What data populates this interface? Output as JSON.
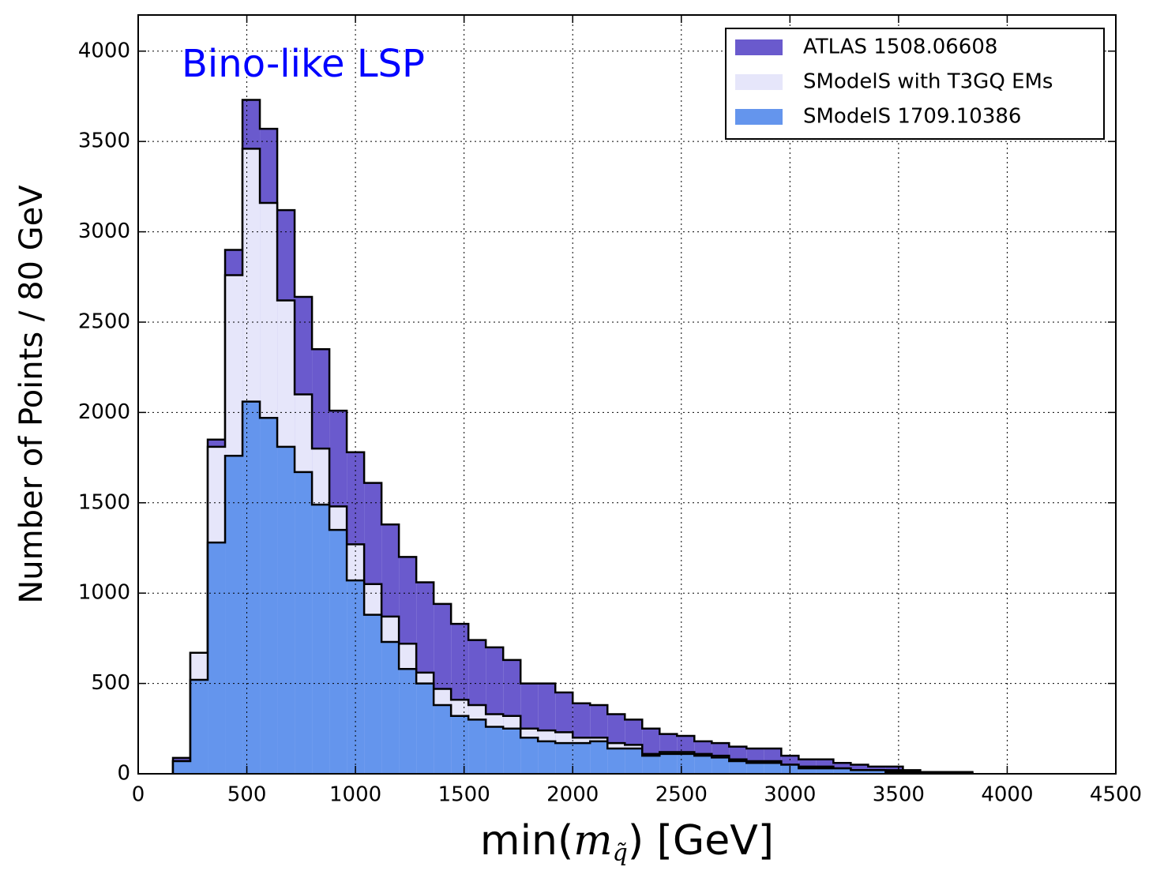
{
  "chart_data": {
    "type": "histogram",
    "annotation": "Bino-like LSP",
    "xlabel": {
      "pre": "min(",
      "var": "m",
      "sub": "q̃",
      "post": ") [GeV]"
    },
    "ylabel": "Number of Points / 80 GeV",
    "bins": [
      160,
      240,
      320,
      400,
      480,
      560,
      640,
      720,
      800,
      880,
      960,
      1040,
      1120,
      1200,
      1280,
      1360,
      1440,
      1520,
      1600,
      1680,
      1760,
      1840,
      1920,
      2000,
      2080,
      2160,
      2240,
      2320,
      2400,
      2480,
      2560,
      2640,
      2720,
      2800,
      2880,
      2960,
      3040,
      3120,
      3200,
      3280,
      3360,
      3440,
      3520,
      3600,
      3680,
      3760,
      3840
    ],
    "series": [
      {
        "name": "ATLAS 1508.06608",
        "color": "#6a5acd",
        "values": [
          88,
          670,
          1850,
          2900,
          3730,
          3570,
          3120,
          2640,
          2350,
          2010,
          1780,
          1610,
          1380,
          1200,
          1060,
          940,
          830,
          740,
          700,
          630,
          500,
          500,
          450,
          390,
          380,
          330,
          300,
          250,
          220,
          210,
          180,
          170,
          150,
          140,
          140,
          100,
          80,
          80,
          60,
          50,
          40,
          40,
          20,
          10,
          10,
          10
        ]
      },
      {
        "name": "SModelS with T3GQ EMs",
        "color": "#e6e6fa",
        "values": [
          70,
          670,
          1810,
          2760,
          3460,
          3160,
          2620,
          2100,
          1800,
          1480,
          1270,
          1050,
          870,
          720,
          560,
          470,
          410,
          380,
          330,
          320,
          250,
          240,
          230,
          200,
          200,
          170,
          160,
          110,
          120,
          120,
          110,
          100,
          80,
          70,
          70,
          50,
          40,
          40,
          30,
          20,
          20,
          20,
          10,
          10,
          5,
          5
        ]
      },
      {
        "name": "SModelS 1709.10386",
        "color": "#6495ed",
        "values": [
          70,
          520,
          1280,
          1760,
          2060,
          1970,
          1810,
          1670,
          1490,
          1350,
          1070,
          880,
          730,
          580,
          500,
          380,
          320,
          300,
          260,
          250,
          200,
          180,
          170,
          170,
          180,
          140,
          140,
          100,
          110,
          110,
          100,
          90,
          70,
          60,
          60,
          50,
          30,
          30,
          30,
          20,
          20,
          10,
          10,
          5,
          5,
          5
        ]
      }
    ],
    "xlim": [
      0,
      4500
    ],
    "xticks": [
      0,
      500,
      1000,
      1500,
      2000,
      2500,
      3000,
      3500,
      4000,
      4500
    ],
    "ylim": [
      0,
      4200
    ],
    "yticks": [
      0,
      500,
      1000,
      1500,
      2000,
      2500,
      3000,
      3500,
      4000
    ],
    "grid": true,
    "legend": "upper right"
  }
}
